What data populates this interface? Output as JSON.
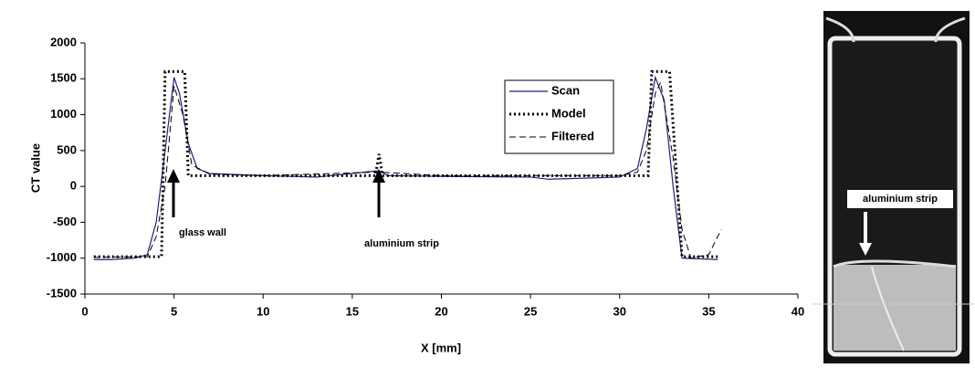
{
  "chart_data": {
    "type": "line",
    "xlabel": "X [mm]",
    "ylabel": "CT value",
    "xlim": [
      0,
      40
    ],
    "xticks": [
      0,
      5,
      10,
      15,
      20,
      25,
      30,
      35,
      40
    ],
    "ylim": [
      -1500,
      2000
    ],
    "yticks": [
      -1500,
      -1000,
      -500,
      0,
      500,
      1000,
      1500,
      2000
    ],
    "annotations": [
      "glass wall",
      "aluminium strip"
    ],
    "series": [
      {
        "name": "Scan",
        "color": "#1f1f7a",
        "x": [
          0.5,
          1.5,
          2.8,
          3.5,
          4.0,
          4.5,
          5.0,
          5.3,
          5.8,
          6.3,
          7,
          10,
          13,
          16.5,
          17,
          20,
          25,
          26,
          30,
          31,
          31.5,
          32,
          32.5,
          33,
          33.5,
          35.5
        ],
        "values": [
          -1020,
          -1020,
          -1000,
          -950,
          -500,
          500,
          1520,
          1300,
          600,
          250,
          180,
          150,
          130,
          220,
          150,
          140,
          130,
          100,
          130,
          250,
          800,
          1520,
          1200,
          0,
          -1000,
          -1020
        ]
      },
      {
        "name": "Model",
        "color": "#000000",
        "x": [
          0.5,
          4.3,
          4.5,
          5.6,
          5.8,
          16.3,
          16.5,
          16.7,
          31.6,
          31.8,
          32.8,
          33.5,
          35.5
        ],
        "values": [
          -980,
          -980,
          1600,
          1600,
          150,
          150,
          450,
          150,
          150,
          1600,
          1600,
          -980,
          -980
        ]
      },
      {
        "name": "Filtered",
        "color": "#000000",
        "x": [
          0.5,
          3.5,
          4.0,
          4.5,
          5.0,
          5.5,
          6,
          7,
          10,
          16.5,
          20,
          30,
          31,
          31.5,
          32,
          32.3,
          33,
          33.5,
          34,
          35,
          35.7
        ],
        "values": [
          -990,
          -980,
          -700,
          0,
          1400,
          1000,
          300,
          170,
          150,
          200,
          150,
          150,
          200,
          500,
          1300,
          1450,
          400,
          -600,
          -1000,
          -950,
          -600
        ]
      }
    ]
  },
  "image": {
    "label": "aluminium strip"
  }
}
